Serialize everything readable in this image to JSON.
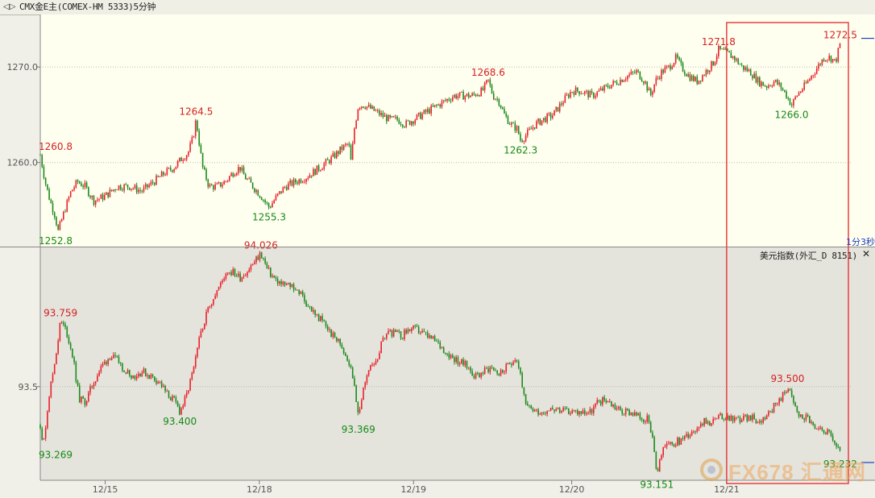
{
  "window": {
    "title": "CMX金E主(COMEX-HM 5333)5分钟",
    "sub_title": "美元指数(外汇_D 8151)",
    "timer": "1分3秒",
    "close_icon": "close-icon",
    "chart_icon": "chart-icon"
  },
  "watermark": {
    "text": "FX678 汇通网",
    "logo": "fx678-logo"
  },
  "colors": {
    "up": "#e8222b",
    "down": "#1e8a1e",
    "label_up": "#d42020",
    "label_down": "#148a14",
    "highlight": "#e84040",
    "top_bg": "#fffff0",
    "bottom_bg": "#e4e3dc",
    "axis_text": "#555555"
  },
  "chart_data": [
    {
      "type": "candlestick",
      "name": "CMX金E主",
      "x_tick_labels": [
        "12/15",
        "12/18",
        "12/19",
        "12/20",
        "12/21"
      ],
      "y_tick_labels": [
        "1270.0",
        "1260.0"
      ],
      "y_ticks": [
        1270.0,
        1260.0
      ],
      "ylim": [
        1251.2,
        1275.5
      ],
      "annotations": [
        {
          "text": "1260.8",
          "value": 1260.8,
          "t": 0.2,
          "kind": "high"
        },
        {
          "text": "1252.8",
          "value": 1252.8,
          "t": 22,
          "kind": "low"
        },
        {
          "text": "1264.5",
          "value": 1264.5,
          "t": 192,
          "kind": "high"
        },
        {
          "text": "1255.3",
          "value": 1255.3,
          "t": 282,
          "kind": "low"
        },
        {
          "text": "1268.6",
          "value": 1268.6,
          "t": 552,
          "kind": "high"
        },
        {
          "text": "1262.3",
          "value": 1262.3,
          "t": 592,
          "kind": "low"
        },
        {
          "text": "1271.8",
          "value": 1271.8,
          "t": 836,
          "kind": "high"
        },
        {
          "text": "1266.0",
          "value": 1266.0,
          "t": 926,
          "kind": "low"
        },
        {
          "text": "1272.5",
          "value": 1272.5,
          "t": 986,
          "kind": "high"
        }
      ],
      "path": [
        [
          0,
          1260.8
        ],
        [
          6,
          1258.0
        ],
        [
          12,
          1256.0
        ],
        [
          18,
          1254.5
        ],
        [
          22,
          1252.8
        ],
        [
          30,
          1255.0
        ],
        [
          38,
          1257.0
        ],
        [
          46,
          1258.0
        ],
        [
          55,
          1257.5
        ],
        [
          66,
          1256.0
        ],
        [
          80,
          1256.5
        ],
        [
          95,
          1257.5
        ],
        [
          110,
          1257.5
        ],
        [
          125,
          1257.0
        ],
        [
          140,
          1258.0
        ],
        [
          155,
          1259.0
        ],
        [
          165,
          1259.5
        ],
        [
          175,
          1260.5
        ],
        [
          182,
          1261.0
        ],
        [
          188,
          1262.5
        ],
        [
          192,
          1264.5
        ],
        [
          196,
          1262.0
        ],
        [
          200,
          1259.5
        ],
        [
          208,
          1257.5
        ],
        [
          218,
          1257.5
        ],
        [
          228,
          1258.0
        ],
        [
          238,
          1259.0
        ],
        [
          246,
          1259.5
        ],
        [
          252,
          1258.5
        ],
        [
          262,
          1257.5
        ],
        [
          272,
          1256.5
        ],
        [
          282,
          1255.3
        ],
        [
          292,
          1256.5
        ],
        [
          302,
          1257.5
        ],
        [
          315,
          1258.0
        ],
        [
          328,
          1258.5
        ],
        [
          345,
          1259.5
        ],
        [
          360,
          1260.5
        ],
        [
          372,
          1261.5
        ],
        [
          380,
          1262.0
        ],
        [
          383,
          1260.0
        ],
        [
          387,
          1263.5
        ],
        [
          392,
          1266.0
        ],
        [
          400,
          1266.0
        ],
        [
          410,
          1265.5
        ],
        [
          420,
          1265.0
        ],
        [
          430,
          1264.5
        ],
        [
          440,
          1264.5
        ],
        [
          450,
          1264.0
        ],
        [
          460,
          1264.5
        ],
        [
          470,
          1265.0
        ],
        [
          480,
          1265.5
        ],
        [
          490,
          1266.0
        ],
        [
          500,
          1266.5
        ],
        [
          510,
          1267.0
        ],
        [
          520,
          1267.0
        ],
        [
          532,
          1267.0
        ],
        [
          545,
          1267.5
        ],
        [
          552,
          1268.6
        ],
        [
          558,
          1267.0
        ],
        [
          565,
          1266.5
        ],
        [
          572,
          1265.0
        ],
        [
          580,
          1264.0
        ],
        [
          588,
          1263.5
        ],
        [
          592,
          1262.3
        ],
        [
          600,
          1263.0
        ],
        [
          610,
          1264.0
        ],
        [
          620,
          1264.5
        ],
        [
          632,
          1265.0
        ],
        [
          645,
          1266.5
        ],
        [
          655,
          1267.5
        ],
        [
          665,
          1267.5
        ],
        [
          680,
          1267.0
        ],
        [
          690,
          1267.5
        ],
        [
          700,
          1268.0
        ],
        [
          712,
          1268.5
        ],
        [
          722,
          1269.0
        ],
        [
          735,
          1269.5
        ],
        [
          745,
          1268.5
        ],
        [
          752,
          1267.0
        ],
        [
          758,
          1268.5
        ],
        [
          766,
          1269.5
        ],
        [
          775,
          1270.0
        ],
        [
          784,
          1271.0
        ],
        [
          790,
          1270.0
        ],
        [
          800,
          1269.0
        ],
        [
          810,
          1268.5
        ],
        [
          820,
          1269.5
        ],
        [
          830,
          1270.5
        ],
        [
          836,
          1271.8
        ],
        [
          845,
          1271.5
        ],
        [
          855,
          1271.0
        ],
        [
          865,
          1270.0
        ],
        [
          875,
          1269.5
        ],
        [
          885,
          1268.5
        ],
        [
          895,
          1268.0
        ],
        [
          905,
          1268.5
        ],
        [
          912,
          1268.0
        ],
        [
          920,
          1267.0
        ],
        [
          926,
          1266.0
        ],
        [
          932,
          1267.0
        ],
        [
          942,
          1268.0
        ],
        [
          950,
          1269.0
        ],
        [
          958,
          1270.0
        ],
        [
          966,
          1271.0
        ],
        [
          974,
          1271.0
        ],
        [
          980,
          1270.5
        ],
        [
          986,
          1272.5
        ]
      ]
    },
    {
      "type": "candlestick",
      "name": "美元指数",
      "x_tick_labels": [
        "12/15",
        "12/18",
        "12/19",
        "12/20",
        "12/21"
      ],
      "y_tick_labels": [
        "93.5"
      ],
      "y_ticks": [
        93.5
      ],
      "ylim": [
        93.13,
        94.05
      ],
      "annotations": [
        {
          "text": "93.759",
          "value": 93.759,
          "t": 25,
          "kind": "high"
        },
        {
          "text": "93.269",
          "value": 93.269,
          "t": 0.4,
          "kind": "low"
        },
        {
          "text": "93.400",
          "value": 93.4,
          "t": 172,
          "kind": "low"
        },
        {
          "text": "94.026",
          "value": 94.026,
          "t": 272,
          "kind": "high"
        },
        {
          "text": "93.369",
          "value": 93.369,
          "t": 392,
          "kind": "low"
        },
        {
          "text": "93.151",
          "value": 93.151,
          "t": 760,
          "kind": "low"
        },
        {
          "text": "93.500",
          "value": 93.5,
          "t": 921,
          "kind": "high"
        },
        {
          "text": "93.232",
          "value": 93.232,
          "t": 986,
          "kind": "low"
        }
      ],
      "path": [
        [
          0,
          93.35
        ],
        [
          4,
          93.269
        ],
        [
          10,
          93.45
        ],
        [
          18,
          93.6
        ],
        [
          25,
          93.759
        ],
        [
          32,
          93.72
        ],
        [
          40,
          93.62
        ],
        [
          48,
          93.45
        ],
        [
          56,
          93.44
        ],
        [
          66,
          93.52
        ],
        [
          76,
          93.58
        ],
        [
          86,
          93.62
        ],
        [
          96,
          93.6
        ],
        [
          106,
          93.56
        ],
        [
          116,
          93.54
        ],
        [
          126,
          93.56
        ],
        [
          136,
          93.54
        ],
        [
          146,
          93.52
        ],
        [
          156,
          93.47
        ],
        [
          166,
          93.44
        ],
        [
          172,
          93.4
        ],
        [
          180,
          93.46
        ],
        [
          190,
          93.58
        ],
        [
          198,
          93.72
        ],
        [
          206,
          93.8
        ],
        [
          214,
          93.86
        ],
        [
          222,
          93.9
        ],
        [
          230,
          93.96
        ],
        [
          238,
          93.95
        ],
        [
          246,
          93.93
        ],
        [
          256,
          93.96
        ],
        [
          266,
          94.0
        ],
        [
          272,
          94.026
        ],
        [
          280,
          93.96
        ],
        [
          290,
          93.92
        ],
        [
          300,
          93.9
        ],
        [
          310,
          93.9
        ],
        [
          320,
          93.87
        ],
        [
          330,
          93.82
        ],
        [
          340,
          93.78
        ],
        [
          350,
          93.75
        ],
        [
          360,
          93.7
        ],
        [
          370,
          93.67
        ],
        [
          380,
          93.6
        ],
        [
          388,
          93.5
        ],
        [
          392,
          93.369
        ],
        [
          398,
          93.5
        ],
        [
          406,
          93.57
        ],
        [
          416,
          93.62
        ],
        [
          426,
          93.72
        ],
        [
          436,
          93.71
        ],
        [
          446,
          93.7
        ],
        [
          456,
          93.73
        ],
        [
          466,
          93.72
        ],
        [
          476,
          93.7
        ],
        [
          486,
          93.68
        ],
        [
          496,
          93.65
        ],
        [
          506,
          93.62
        ],
        [
          516,
          93.6
        ],
        [
          526,
          93.58
        ],
        [
          536,
          93.54
        ],
        [
          546,
          93.56
        ],
        [
          556,
          93.58
        ],
        [
          566,
          93.55
        ],
        [
          576,
          93.58
        ],
        [
          586,
          93.62
        ],
        [
          592,
          93.55
        ],
        [
          598,
          93.42
        ],
        [
          608,
          93.41
        ],
        [
          618,
          93.4
        ],
        [
          630,
          93.42
        ],
        [
          642,
          93.4
        ],
        [
          654,
          93.4
        ],
        [
          666,
          93.4
        ],
        [
          678,
          93.4
        ],
        [
          688,
          93.44
        ],
        [
          698,
          93.45
        ],
        [
          708,
          93.42
        ],
        [
          718,
          93.4
        ],
        [
          728,
          93.4
        ],
        [
          738,
          93.38
        ],
        [
          748,
          93.37
        ],
        [
          754,
          93.3
        ],
        [
          760,
          93.151
        ],
        [
          768,
          93.26
        ],
        [
          778,
          93.27
        ],
        [
          790,
          93.29
        ],
        [
          802,
          93.32
        ],
        [
          814,
          93.36
        ],
        [
          826,
          93.36
        ],
        [
          838,
          93.38
        ],
        [
          850,
          93.38
        ],
        [
          862,
          93.37
        ],
        [
          874,
          93.38
        ],
        [
          886,
          93.36
        ],
        [
          898,
          93.4
        ],
        [
          910,
          93.44
        ],
        [
          921,
          93.5
        ],
        [
          928,
          93.44
        ],
        [
          936,
          93.38
        ],
        [
          946,
          93.38
        ],
        [
          956,
          93.32
        ],
        [
          966,
          93.33
        ],
        [
          976,
          93.3
        ],
        [
          986,
          93.232
        ]
      ]
    }
  ]
}
